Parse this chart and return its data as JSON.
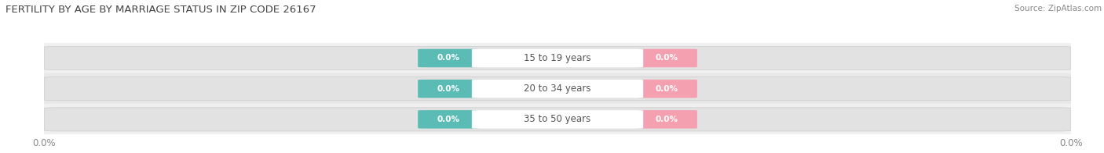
{
  "title": "FERTILITY BY AGE BY MARRIAGE STATUS IN ZIP CODE 26167",
  "source": "Source: ZipAtlas.com",
  "categories": [
    "15 to 19 years",
    "20 to 34 years",
    "35 to 50 years"
  ],
  "married_values": [
    0.0,
    0.0,
    0.0
  ],
  "unmarried_values": [
    0.0,
    0.0,
    0.0
  ],
  "married_color": "#5bbcb5",
  "unmarried_color": "#f4a0b0",
  "row_bg_even": "#f0f0f0",
  "row_bg_odd": "#e8e8e8",
  "bar_pill_color": "#d8d8d8",
  "label_text_color": "#ffffff",
  "category_text_color": "#555555",
  "tick_label_color": "#888888",
  "title_color": "#444444",
  "source_color": "#888888",
  "title_fontsize": 9.5,
  "source_fontsize": 7.5,
  "tick_fontsize": 8.5,
  "cat_fontsize": 8.5,
  "btn_fontsize": 7.5,
  "legend_fontsize": 9,
  "background_color": "#ffffff"
}
